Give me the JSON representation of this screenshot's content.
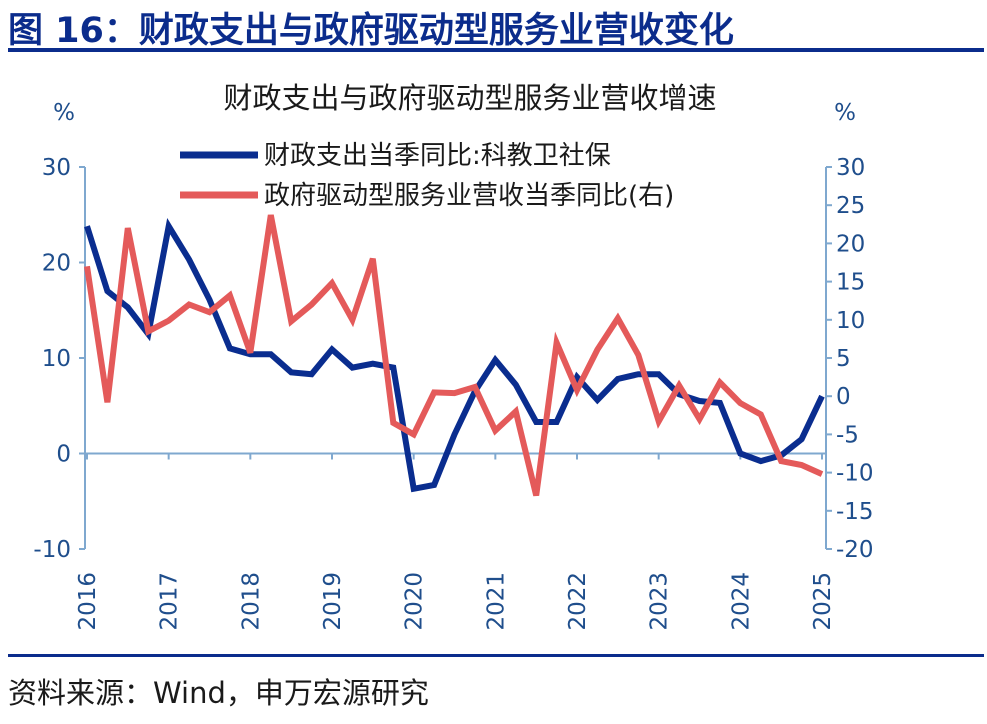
{
  "figure": {
    "title": "图 16：财政支出与政府驱动型服务业营收变化",
    "source": "资料来源：Wind，申万宏源研究"
  },
  "chart_data": {
    "type": "line",
    "title": "财政支出与政府驱动型服务业营收增速",
    "left_unit": "%",
    "right_unit": "%",
    "y_left": {
      "min": -10,
      "max": 30,
      "ticks": [
        "-10",
        "0",
        "10",
        "20",
        "30"
      ]
    },
    "y_right": {
      "min": -20,
      "max": 30,
      "ticks": [
        "-20",
        "-15",
        "-10",
        "-5",
        "0",
        "5",
        "10",
        "15",
        "20",
        "25",
        "30"
      ]
    },
    "x_range": [
      2016.0,
      2025.0
    ],
    "x_ticks": [
      "2016",
      "2017",
      "2018",
      "2019",
      "2020",
      "2021",
      "2022",
      "2023",
      "2024",
      "2025"
    ],
    "grid": false,
    "legend_position": "top",
    "series": [
      {
        "name": "财政支出当季同比:科教卫社保",
        "axis": "left",
        "color": "#0a2d8f",
        "x": [
          2016.0,
          2016.25,
          2016.5,
          2016.75,
          2017.0,
          2017.25,
          2017.5,
          2017.75,
          2018.0,
          2018.25,
          2018.5,
          2018.75,
          2019.0,
          2019.25,
          2019.5,
          2019.75,
          2020.0,
          2020.25,
          2020.5,
          2020.75,
          2021.0,
          2021.25,
          2021.5,
          2021.75,
          2022.0,
          2022.25,
          2022.5,
          2022.75,
          2023.0,
          2023.25,
          2023.5,
          2023.75,
          2024.0,
          2024.25,
          2024.5,
          2024.75,
          2025.0
        ],
        "values": [
          23.8,
          17.0,
          15.3,
          12.5,
          23.8,
          20.3,
          16.1,
          11.0,
          10.4,
          10.4,
          8.5,
          8.3,
          10.9,
          9.0,
          9.4,
          9.0,
          -3.7,
          -3.3,
          2.0,
          6.5,
          9.8,
          7.2,
          3.3,
          3.3,
          8.0,
          5.6,
          7.8,
          8.3,
          8.3,
          6.2,
          5.5,
          5.3,
          0.0,
          -0.8,
          -0.2,
          1.5,
          6.0
        ]
      },
      {
        "name": "政府驱动型服务业营收当季同比(右)",
        "axis": "right",
        "color": "#e45a5a",
        "x": [
          2016.0,
          2016.25,
          2016.5,
          2016.75,
          2017.0,
          2017.25,
          2017.5,
          2017.75,
          2018.0,
          2018.25,
          2018.5,
          2018.75,
          2019.0,
          2019.25,
          2019.5,
          2019.75,
          2020.0,
          2020.25,
          2020.5,
          2020.75,
          2021.0,
          2021.25,
          2021.5,
          2021.75,
          2022.0,
          2022.25,
          2022.5,
          2022.75,
          2023.0,
          2023.25,
          2023.5,
          2023.75,
          2024.0,
          2024.25,
          2024.5,
          2024.75,
          2025.0
        ],
        "values": [
          17.0,
          -0.8,
          22.0,
          8.5,
          9.9,
          12.0,
          11.0,
          13.2,
          5.7,
          23.7,
          9.8,
          12.0,
          14.8,
          10.0,
          18.0,
          -3.5,
          -5.0,
          0.5,
          0.4,
          1.2,
          -4.5,
          -2.0,
          -13.0,
          7.0,
          0.8,
          6.1,
          10.2,
          5.4,
          -3.3,
          1.4,
          -3.0,
          1.8,
          -0.9,
          -2.4,
          -8.5,
          -9.0,
          -10.2
        ]
      }
    ]
  }
}
